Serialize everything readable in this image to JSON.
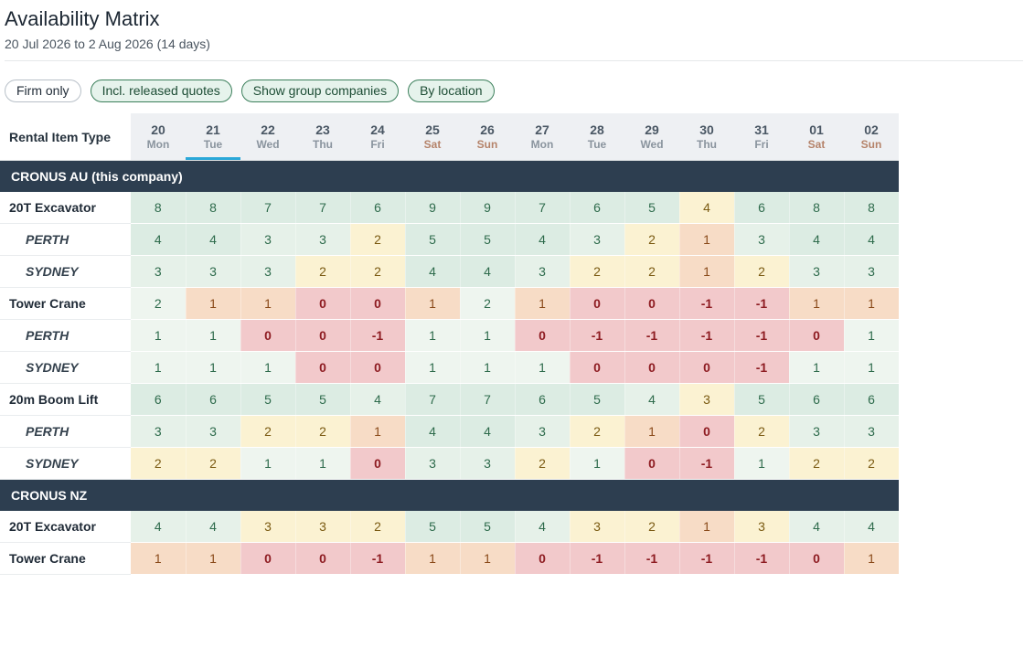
{
  "page": {
    "title": "Availability Matrix",
    "subtitle": "20 Jul 2026 to 2 Aug 2026 (14 days)"
  },
  "filters": [
    {
      "label": "Firm only",
      "active": false
    },
    {
      "label": "Incl. released quotes",
      "active": true
    },
    {
      "label": "Show group companies",
      "active": true
    },
    {
      "label": "By location",
      "active": true
    }
  ],
  "table": {
    "corner_label": "Rental Item Type",
    "selected_day_index": 1,
    "days": [
      {
        "num": "20",
        "name": "Mon",
        "weekend": false
      },
      {
        "num": "21",
        "name": "Tue",
        "weekend": false
      },
      {
        "num": "22",
        "name": "Wed",
        "weekend": false
      },
      {
        "num": "23",
        "name": "Thu",
        "weekend": false
      },
      {
        "num": "24",
        "name": "Fri",
        "weekend": false
      },
      {
        "num": "25",
        "name": "Sat",
        "weekend": true
      },
      {
        "num": "26",
        "name": "Sun",
        "weekend": true
      },
      {
        "num": "27",
        "name": "Mon",
        "weekend": false
      },
      {
        "num": "28",
        "name": "Tue",
        "weekend": false
      },
      {
        "num": "29",
        "name": "Wed",
        "weekend": false
      },
      {
        "num": "30",
        "name": "Thu",
        "weekend": false
      },
      {
        "num": "31",
        "name": "Fri",
        "weekend": false
      },
      {
        "num": "01",
        "name": "Sat",
        "weekend": true
      },
      {
        "num": "02",
        "name": "Sun",
        "weekend": true
      }
    ],
    "groups": [
      {
        "name": "CRONUS AU (this company)",
        "rows": [
          {
            "label": "20T Excavator",
            "level": "item",
            "values": [
              8,
              8,
              7,
              7,
              6,
              9,
              9,
              7,
              6,
              5,
              4,
              6,
              8,
              8
            ]
          },
          {
            "label": "PERTH",
            "level": "location",
            "values": [
              4,
              4,
              3,
              3,
              2,
              5,
              5,
              4,
              3,
              2,
              1,
              3,
              4,
              4
            ]
          },
          {
            "label": "SYDNEY",
            "level": "location",
            "values": [
              3,
              3,
              3,
              2,
              2,
              4,
              4,
              3,
              2,
              2,
              1,
              2,
              3,
              3
            ]
          },
          {
            "label": "Tower Crane",
            "level": "item",
            "values": [
              2,
              1,
              1,
              0,
              0,
              1,
              2,
              1,
              0,
              0,
              -1,
              -1,
              1,
              1
            ]
          },
          {
            "label": "PERTH",
            "level": "location",
            "values": [
              1,
              1,
              0,
              0,
              -1,
              1,
              1,
              0,
              -1,
              -1,
              -1,
              -1,
              0,
              1
            ]
          },
          {
            "label": "SYDNEY",
            "level": "location",
            "values": [
              1,
              1,
              1,
              0,
              0,
              1,
              1,
              1,
              0,
              0,
              0,
              -1,
              1,
              1
            ]
          },
          {
            "label": "20m Boom Lift",
            "level": "item",
            "values": [
              6,
              6,
              5,
              5,
              4,
              7,
              7,
              6,
              5,
              4,
              3,
              5,
              6,
              6
            ]
          },
          {
            "label": "PERTH",
            "level": "location",
            "values": [
              3,
              3,
              2,
              2,
              1,
              4,
              4,
              3,
              2,
              1,
              0,
              2,
              3,
              3
            ]
          },
          {
            "label": "SYDNEY",
            "level": "location",
            "values": [
              2,
              2,
              1,
              1,
              0,
              3,
              3,
              2,
              1,
              0,
              -1,
              1,
              2,
              2
            ]
          }
        ]
      },
      {
        "name": "CRONUS NZ",
        "rows": [
          {
            "label": "20T Excavator",
            "level": "item",
            "values": [
              4,
              4,
              3,
              3,
              2,
              5,
              5,
              4,
              3,
              2,
              1,
              3,
              4,
              4
            ]
          },
          {
            "label": "Tower Crane",
            "level": "item",
            "values": [
              1,
              1,
              0,
              0,
              -1,
              1,
              1,
              0,
              -1,
              -1,
              -1,
              -1,
              0,
              1
            ]
          }
        ]
      }
    ]
  }
}
